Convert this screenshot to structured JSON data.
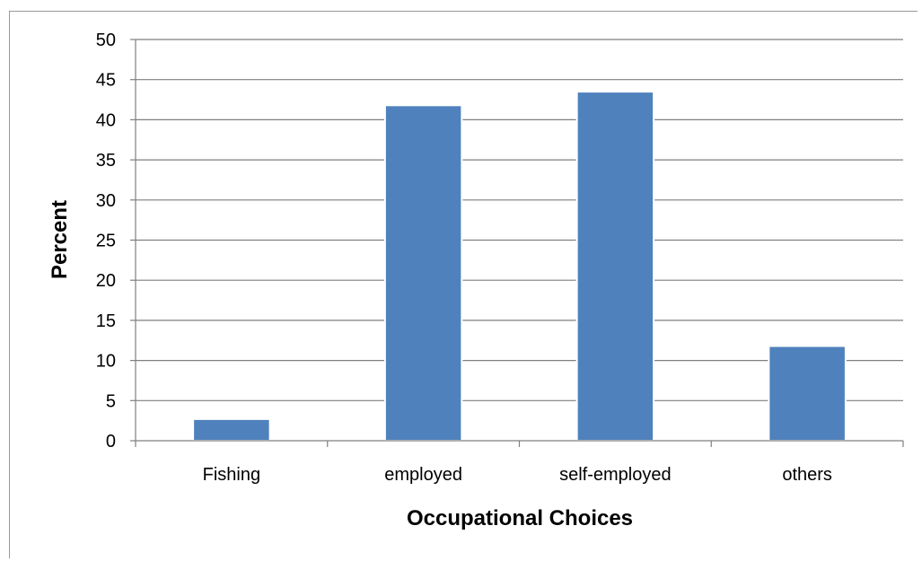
{
  "chart_data": {
    "type": "bar",
    "categories": [
      "Fishing",
      "employed",
      "self-employed",
      "others"
    ],
    "values": [
      2.7,
      41.8,
      43.5,
      11.8
    ],
    "title": "",
    "xlabel": "Occupational Choices",
    "ylabel": "Percent",
    "ylim": [
      0,
      50
    ],
    "yticks": [
      0,
      5,
      10,
      15,
      20,
      25,
      30,
      35,
      40,
      45,
      50
    ],
    "grid": true,
    "legend": "none",
    "colors": {
      "bar": "#4f81bd",
      "bar_edge": "#ffffff",
      "grid": "#7f7f7f",
      "axis": "#7f7f7f"
    }
  }
}
